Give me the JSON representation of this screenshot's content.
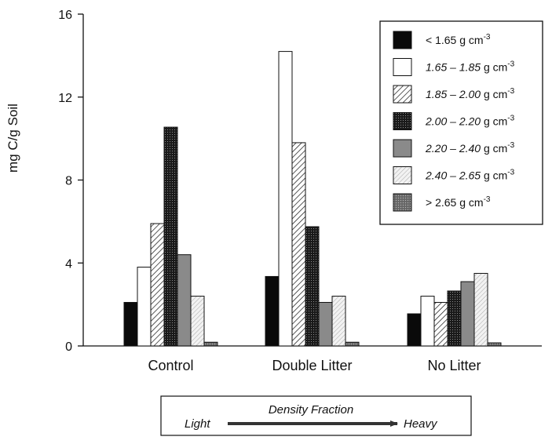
{
  "chart_data": {
    "type": "bar",
    "ylabel": "mg C/g Soil",
    "ylim": [
      0,
      16
    ],
    "yticks": [
      0,
      4,
      8,
      12,
      16
    ],
    "categories": [
      "Control",
      "Double Litter",
      "No Litter"
    ],
    "series": [
      {
        "name": "< 1.65 g cm⁻³",
        "name_prefix": "< 1.65",
        "name_unit": "g cm",
        "name_sup": "-3",
        "fill": "solid-black",
        "values": [
          2.1,
          3.35,
          1.55
        ]
      },
      {
        "name": "1.65 – 1.85 g cm⁻³",
        "name_prefix": "1.65 – 1.85",
        "name_unit": "g cm",
        "name_sup": "-3",
        "fill": "white",
        "values": [
          3.8,
          14.2,
          2.4
        ]
      },
      {
        "name": "1.85 – 2.00 g cm⁻³",
        "name_prefix": "1.85 – 2.00",
        "name_unit": "g cm",
        "name_sup": "-3",
        "fill": "diagonal-hatch",
        "values": [
          5.9,
          9.8,
          2.1
        ]
      },
      {
        "name": "2.00 – 2.20 g cm⁻³",
        "name_prefix": "2.00 – 2.20",
        "name_unit": "g cm",
        "name_sup": "-3",
        "fill": "dark-crosshatch",
        "values": [
          10.55,
          5.75,
          2.65
        ]
      },
      {
        "name": "2.20 – 2.40 g cm⁻³",
        "name_prefix": "2.20 – 2.40",
        "name_unit": "g cm",
        "name_sup": "-3",
        "fill": "medium-gray",
        "values": [
          4.4,
          2.1,
          3.1
        ]
      },
      {
        "name": "2.40 – 2.65 g cm⁻³",
        "name_prefix": "2.40 – 2.65",
        "name_unit": "g cm",
        "name_sup": "-3",
        "fill": "light-dotted",
        "values": [
          2.4,
          2.4,
          3.5
        ]
      },
      {
        "name": "> 2.65 g cm⁻³",
        "name_prefix": "> 2.65",
        "name_unit": "g cm",
        "name_sup": "-3",
        "fill": "gray-crosshatch",
        "values": [
          0.18,
          0.18,
          0.15
        ]
      }
    ],
    "legend_position": "top-right",
    "grid": false
  },
  "density_box": {
    "title": "Density Fraction",
    "left_label": "Light",
    "right_label": "Heavy"
  },
  "colors": {
    "axis": "#111111",
    "solid_black": "#0a0a0a",
    "medium_gray": "#8a8a8a",
    "arrow": "#333333"
  }
}
